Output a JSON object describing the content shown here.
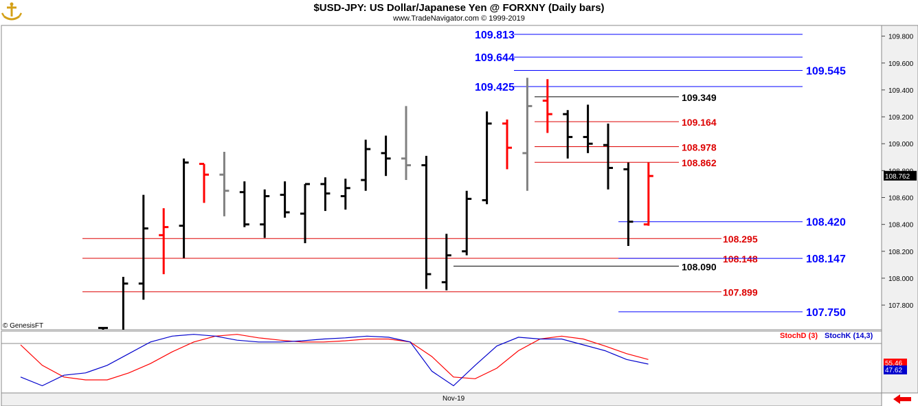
{
  "header": {
    "title": "$USD-JPY:  US Dollar/Japanese Yen @ FORXNY  (Daily bars)",
    "subtitle": "www.TradeNavigator.com © 1999-2019"
  },
  "copyright": "© GenesisFT",
  "x_axis_label": "Nov-19",
  "colors": {
    "up": "#000000",
    "down": "#ff0000",
    "neutral": "#808080",
    "blue_level": "#0000ff",
    "red_level": "#dd0000",
    "black_level": "#000000",
    "stoch_d": "#ff0000",
    "stoch_k": "#0000cc"
  },
  "icons": [
    "logo-icon",
    "back-arrow-icon"
  ],
  "chart_data": [
    {
      "type": "ohlc",
      "title": "$USD-JPY:  US Dollar/Japanese Yen @ FORXNY  (Daily bars)",
      "ylim": [
        107.65,
        109.9
      ],
      "yticks": [
        "109.800",
        "109.600",
        "109.400",
        "109.200",
        "109.000",
        "108.800",
        "108.600",
        "108.400",
        "108.200",
        "108.000",
        "107.800"
      ],
      "last_price": "108.762",
      "bars": [
        {
          "o": 107.63,
          "h": 107.63,
          "l": 107.6,
          "c": 107.63,
          "color": "up"
        },
        {
          "o": 107.6,
          "h": 108.01,
          "l": 107.6,
          "c": 107.96,
          "color": "up"
        },
        {
          "o": 107.96,
          "h": 108.62,
          "l": 107.84,
          "c": 108.37,
          "color": "up"
        },
        {
          "o": 108.32,
          "h": 108.52,
          "l": 108.03,
          "c": 108.38,
          "color": "down"
        },
        {
          "o": 108.39,
          "h": 108.89,
          "l": 108.15,
          "c": 108.86,
          "color": "up"
        },
        {
          "o": 108.85,
          "h": 108.85,
          "l": 108.56,
          "c": 108.77,
          "color": "down"
        },
        {
          "o": 108.77,
          "h": 108.94,
          "l": 108.46,
          "c": 108.65,
          "color": "neutral"
        },
        {
          "o": 108.64,
          "h": 108.72,
          "l": 108.38,
          "c": 108.4,
          "color": "up"
        },
        {
          "o": 108.4,
          "h": 108.66,
          "l": 108.3,
          "c": 108.61,
          "color": "up"
        },
        {
          "o": 108.62,
          "h": 108.72,
          "l": 108.45,
          "c": 108.49,
          "color": "up"
        },
        {
          "o": 108.48,
          "h": 108.7,
          "l": 108.26,
          "c": 108.7,
          "color": "up"
        },
        {
          "o": 108.7,
          "h": 108.75,
          "l": 108.5,
          "c": 108.63,
          "color": "up"
        },
        {
          "o": 108.61,
          "h": 108.74,
          "l": 108.51,
          "c": 108.67,
          "color": "up"
        },
        {
          "o": 108.73,
          "h": 109.03,
          "l": 108.65,
          "c": 108.96,
          "color": "up"
        },
        {
          "o": 108.93,
          "h": 109.06,
          "l": 108.76,
          "c": 108.89,
          "color": "up"
        },
        {
          "o": 108.89,
          "h": 109.28,
          "l": 108.73,
          "c": 108.84,
          "color": "neutral"
        },
        {
          "o": 108.84,
          "h": 108.91,
          "l": 107.92,
          "c": 108.03,
          "color": "up"
        },
        {
          "o": 107.97,
          "h": 108.33,
          "l": 107.91,
          "c": 108.17,
          "color": "up"
        },
        {
          "o": 108.2,
          "h": 108.65,
          "l": 108.17,
          "c": 108.59,
          "color": "up"
        },
        {
          "o": 108.58,
          "h": 109.24,
          "l": 108.55,
          "c": 109.15,
          "color": "up"
        },
        {
          "o": 109.15,
          "h": 109.18,
          "l": 108.81,
          "c": 108.97,
          "color": "down"
        },
        {
          "o": 108.93,
          "h": 109.49,
          "l": 108.65,
          "c": 109.28,
          "color": "neutral"
        },
        {
          "o": 109.32,
          "h": 109.48,
          "l": 109.08,
          "c": 109.22,
          "color": "down"
        },
        {
          "o": 109.22,
          "h": 109.25,
          "l": 108.89,
          "c": 109.05,
          "color": "up"
        },
        {
          "o": 109.05,
          "h": 109.29,
          "l": 108.93,
          "c": 109.0,
          "color": "up"
        },
        {
          "o": 108.99,
          "h": 109.15,
          "l": 108.66,
          "c": 108.82,
          "color": "up"
        },
        {
          "o": 108.81,
          "h": 108.86,
          "l": 108.24,
          "c": 108.42,
          "color": "up"
        },
        {
          "o": 108.4,
          "h": 108.86,
          "l": 108.39,
          "c": 108.76,
          "color": "down"
        }
      ],
      "levels": [
        {
          "value": "109.813",
          "color": "blue",
          "side": "left"
        },
        {
          "value": "109.644",
          "color": "blue",
          "side": "left"
        },
        {
          "value": "109.545",
          "color": "blue",
          "side": "right"
        },
        {
          "value": "109.425",
          "color": "blue",
          "side": "left"
        },
        {
          "value": "109.349",
          "color": "black",
          "side": "mid"
        },
        {
          "value": "109.164",
          "color": "red",
          "side": "mid"
        },
        {
          "value": "108.978",
          "color": "red",
          "side": "mid"
        },
        {
          "value": "108.862",
          "color": "red",
          "side": "mid"
        },
        {
          "value": "108.420",
          "color": "blue",
          "side": "right"
        },
        {
          "value": "108.295",
          "color": "red",
          "side": "mid"
        },
        {
          "value": "108.148",
          "color": "red",
          "side": "mid"
        },
        {
          "value": "108.147",
          "color": "blue",
          "side": "right"
        },
        {
          "value": "108.090",
          "color": "black",
          "side": "mid"
        },
        {
          "value": "107.899",
          "color": "red",
          "side": "mid"
        },
        {
          "value": "107.750",
          "color": "blue",
          "side": "right"
        }
      ]
    },
    {
      "type": "line",
      "title": "",
      "ylim": [
        0,
        100
      ],
      "series": [
        {
          "name": "StochD (3)",
          "last_value": "55.46",
          "values": [
            80,
            45,
            25,
            20,
            20,
            32,
            48,
            68,
            85,
            95,
            98,
            92,
            88,
            85,
            85,
            87,
            90,
            90,
            85,
            60,
            25,
            22,
            40,
            70,
            90,
            95,
            90,
            78,
            65,
            55
          ]
        },
        {
          "name": "StochK (14,3)",
          "last_value": "47.62",
          "values": [
            25,
            10,
            28,
            32,
            45,
            65,
            85,
            95,
            98,
            95,
            88,
            85,
            85,
            87,
            90,
            92,
            95,
            93,
            85,
            35,
            10,
            45,
            78,
            93,
            90,
            90,
            80,
            70,
            55,
            47
          ]
        }
      ]
    }
  ]
}
